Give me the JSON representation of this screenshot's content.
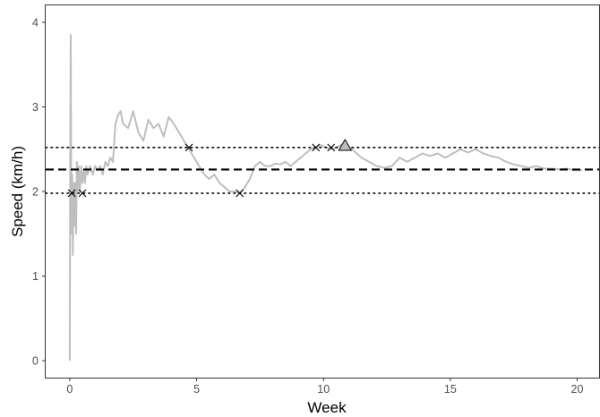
{
  "chart_data": {
    "type": "line",
    "xlabel": "Week",
    "ylabel": "Speed (km/h)",
    "xlim": [
      -0.95,
      20.9
    ],
    "ylim": [
      -0.2,
      4.2
    ],
    "x_ticks": [
      0,
      5,
      10,
      15,
      20
    ],
    "y_ticks": [
      0,
      1,
      2,
      3,
      4
    ],
    "grid": false,
    "colors": {
      "line": "#bebebe",
      "reference": "#000000",
      "marker_fill": "#bebebe"
    },
    "series": [
      {
        "x": [
          0.0,
          0.02,
          0.04,
          0.06,
          0.08,
          0.1,
          0.12,
          0.14,
          0.16,
          0.18,
          0.2,
          0.22,
          0.25,
          0.28,
          0.31,
          0.35,
          0.4,
          0.45,
          0.5,
          0.55,
          0.6,
          0.65,
          0.7,
          0.8,
          0.9,
          1.0,
          1.1,
          1.2,
          1.3,
          1.4,
          1.5,
          1.6,
          1.7,
          1.8,
          1.9,
          2.0,
          2.1,
          2.3,
          2.5,
          2.7,
          2.9,
          3.1,
          3.3,
          3.5,
          3.7,
          3.9,
          4.1,
          4.3,
          4.5,
          4.7,
          4.9,
          5.1,
          5.3,
          5.5,
          5.7,
          5.9,
          6.1,
          6.3,
          6.5,
          6.7,
          6.9,
          7.1,
          7.3,
          7.5,
          7.7,
          7.9,
          8.1,
          8.3,
          8.5,
          8.7,
          8.9,
          9.1,
          9.3,
          9.5,
          9.7,
          9.9,
          10.1,
          10.3,
          10.5,
          10.7,
          10.9,
          11.2,
          11.5,
          11.8,
          12.1,
          12.4,
          12.7,
          13.0,
          13.3,
          13.6,
          13.9,
          14.2,
          14.5,
          14.8,
          15.1,
          15.4,
          15.7,
          16.0,
          16.3,
          16.6,
          16.9,
          17.2,
          17.5,
          17.8,
          18.1,
          18.4,
          18.7,
          19.0,
          19.3,
          19.6,
          19.9,
          20.2
        ],
        "values": [
          0.0,
          2.8,
          3.85,
          2.0,
          1.5,
          2.2,
          1.25,
          1.8,
          2.1,
          1.6,
          1.9,
          2.1,
          1.5,
          2.35,
          2.0,
          2.3,
          2.0,
          2.3,
          2.1,
          2.25,
          2.1,
          2.3,
          2.2,
          2.3,
          2.2,
          2.3,
          2.25,
          2.3,
          2.2,
          2.35,
          2.3,
          2.4,
          2.35,
          2.8,
          2.9,
          2.95,
          2.8,
          2.75,
          2.95,
          2.7,
          2.6,
          2.85,
          2.75,
          2.8,
          2.65,
          2.88,
          2.8,
          2.7,
          2.6,
          2.5,
          2.4,
          2.3,
          2.2,
          2.15,
          2.2,
          2.1,
          2.05,
          2.0,
          2.0,
          1.98,
          2.05,
          2.15,
          2.3,
          2.35,
          2.3,
          2.3,
          2.33,
          2.32,
          2.35,
          2.3,
          2.35,
          2.4,
          2.45,
          2.5,
          2.52,
          2.55,
          2.52,
          2.5,
          2.52,
          2.55,
          2.55,
          2.48,
          2.4,
          2.35,
          2.3,
          2.28,
          2.3,
          2.4,
          2.35,
          2.4,
          2.45,
          2.42,
          2.45,
          2.4,
          2.45,
          2.5,
          2.46,
          2.5,
          2.45,
          2.42,
          2.4,
          2.35,
          2.32,
          2.3,
          2.28,
          2.3,
          2.27,
          2.27,
          2.26,
          2.27,
          2.25,
          2.25
        ]
      }
    ],
    "reference_lines": [
      {
        "y": 2.26,
        "style": "dashed"
      },
      {
        "y": 2.52,
        "style": "dotted"
      },
      {
        "y": 1.98,
        "style": "dotted"
      }
    ],
    "markers": [
      {
        "x": 0.08,
        "y": 1.98,
        "shape": "cross"
      },
      {
        "x": 0.5,
        "y": 1.98,
        "shape": "cross"
      },
      {
        "x": 4.7,
        "y": 2.52,
        "shape": "cross"
      },
      {
        "x": 6.7,
        "y": 1.98,
        "shape": "cross"
      },
      {
        "x": 9.7,
        "y": 2.52,
        "shape": "cross"
      },
      {
        "x": 10.3,
        "y": 2.52,
        "shape": "cross"
      },
      {
        "x": 10.85,
        "y": 2.54,
        "shape": "triangle"
      }
    ]
  }
}
